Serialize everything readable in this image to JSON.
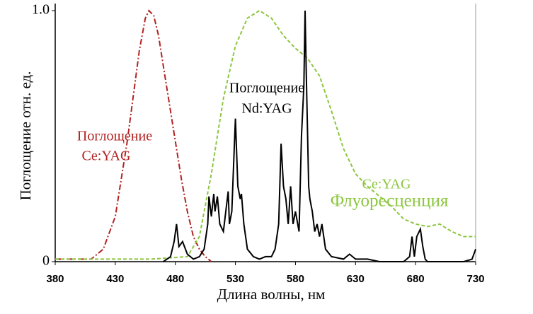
{
  "chart_data": {
    "type": "line",
    "x_label": "Длина волны, нм",
    "y_label": "Поглощение отн. ед.",
    "xlim": [
      380,
      730
    ],
    "xticks": [
      380,
      430,
      480,
      530,
      580,
      630,
      680,
      730
    ],
    "ylim": [
      0,
      1
    ],
    "yticks": [
      0,
      {
        "value": 1,
        "label": "1.0"
      }
    ],
    "annotations": [
      "Поглощение",
      "Ce:YAG",
      "Поглощение",
      "Nd:YAG",
      "Ce:YAG",
      "Флуоресценция"
    ],
    "series": [
      {
        "name": "Поглощение Ce:YAG",
        "color": "#b22222",
        "dash": "8 3 2 3",
        "x": [
          380,
          400,
          410,
          420,
          430,
          440,
          450,
          455,
          458,
          462,
          466,
          470,
          475,
          480,
          485,
          490,
          495,
          500,
          505,
          510
        ],
        "values": [
          0.01,
          0.01,
          0.01,
          0.05,
          0.18,
          0.48,
          0.84,
          0.97,
          1.0,
          0.98,
          0.9,
          0.78,
          0.63,
          0.48,
          0.33,
          0.2,
          0.1,
          0.05,
          0.02,
          0
        ]
      },
      {
        "name": "Флуоресценция Ce:YAG",
        "color": "#8cc63f",
        "dash": "5 3",
        "x": [
          380,
          420,
          460,
          490,
          500,
          510,
          520,
          530,
          540,
          550,
          560,
          570,
          580,
          590,
          600,
          610,
          620,
          630,
          640,
          650,
          660,
          670,
          680,
          690,
          700,
          710,
          720,
          730
        ],
        "values": [
          0.01,
          0.01,
          0.01,
          0.02,
          0.1,
          0.35,
          0.65,
          0.86,
          0.97,
          1.0,
          0.97,
          0.9,
          0.85,
          0.81,
          0.74,
          0.6,
          0.45,
          0.35,
          0.3,
          0.26,
          0.22,
          0.17,
          0.15,
          0.14,
          0.15,
          0.12,
          0.1,
          0.1
        ]
      },
      {
        "name": "Поглощение Nd:YAG",
        "color": "#000000",
        "dash": "",
        "x": [
          470,
          476,
          479,
          481,
          483,
          486,
          490,
          495,
          500,
          504,
          507,
          508,
          510,
          512,
          513,
          515,
          517,
          520,
          522,
          524,
          525,
          527,
          529,
          530,
          532,
          534,
          535,
          537,
          540,
          545,
          550,
          555,
          560,
          563,
          566,
          568,
          570,
          572,
          574,
          576,
          578,
          580,
          583,
          585,
          587,
          588,
          589,
          591,
          592,
          594,
          596,
          598,
          600,
          602,
          605,
          610,
          620,
          625,
          630,
          640,
          650,
          660,
          670,
          675,
          677,
          679,
          681,
          684,
          686,
          688,
          690,
          700,
          710,
          720,
          727,
          730
        ],
        "values": [
          0,
          0.02,
          0.08,
          0.15,
          0.06,
          0.08,
          0.03,
          0.01,
          0.02,
          0.05,
          0.15,
          0.26,
          0.18,
          0.27,
          0.2,
          0.26,
          0.15,
          0.12,
          0.2,
          0.28,
          0.15,
          0.2,
          0.45,
          0.57,
          0.3,
          0.25,
          0.27,
          0.15,
          0.05,
          0.02,
          0.01,
          0.02,
          0.02,
          0.05,
          0.15,
          0.47,
          0.3,
          0.25,
          0.15,
          0.3,
          0.15,
          0.2,
          0.12,
          0.5,
          0.7,
          1.0,
          0.75,
          0.3,
          0.25,
          0.2,
          0.12,
          0.15,
          0.1,
          0.15,
          0.05,
          0.02,
          0.01,
          0.03,
          0.01,
          0.01,
          0,
          0,
          0,
          0.02,
          0.1,
          0.02,
          0.1,
          0.13,
          0.06,
          0.01,
          0,
          0,
          0,
          0,
          0.01,
          0.05
        ]
      }
    ]
  }
}
